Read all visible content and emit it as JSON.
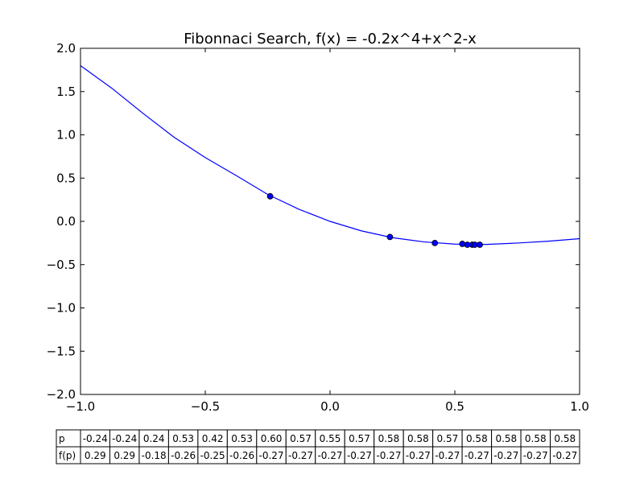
{
  "chart_data": {
    "type": "line",
    "title": "Fibonnaci Search, f(x) = -0.2x^4+x^2-x",
    "xlim": [
      -1.0,
      1.0
    ],
    "ylim": [
      -2.0,
      2.0
    ],
    "xticks": [
      "−1.0",
      "−0.5",
      "0.0",
      "0.5",
      "1.0"
    ],
    "yticks": [
      "−2.0",
      "−1.5",
      "−1.0",
      "−0.5",
      "0.0",
      "0.5",
      "1.0",
      "1.5",
      "2.0"
    ],
    "grid": false,
    "line_color": "#0000ff",
    "marker_color": "#0000ff",
    "curve": {
      "x": [
        -1.0,
        -0.875,
        -0.75,
        -0.625,
        -0.5,
        -0.375,
        -0.25,
        -0.125,
        0.0,
        0.125,
        0.25,
        0.375,
        0.5,
        0.625,
        0.75,
        0.875,
        1.0
      ],
      "y": [
        1.8,
        1.5398,
        1.2492,
        0.9718,
        0.7375,
        0.5276,
        0.3117,
        0.1406,
        0.0,
        -0.1094,
        -0.1883,
        -0.2367,
        -0.2625,
        -0.2661,
        -0.2508,
        -0.2288,
        -0.2
      ]
    },
    "points": {
      "x": [
        -0.24,
        0.24,
        0.42,
        0.53,
        0.55,
        0.57,
        0.58,
        0.6
      ],
      "y": [
        0.29,
        -0.18,
        -0.25,
        -0.26,
        -0.27,
        -0.27,
        -0.27,
        -0.27
      ]
    },
    "table": {
      "row_labels": [
        "p",
        "f(p)"
      ],
      "p": [
        "-0.24",
        "-0.24",
        "0.24",
        "0.53",
        "0.42",
        "0.53",
        "0.60",
        "0.57",
        "0.55",
        "0.57",
        "0.58",
        "0.58",
        "0.57",
        "0.58",
        "0.58",
        "0.58",
        "0.58"
      ],
      "fp": [
        "0.29",
        "0.29",
        "-0.18",
        "-0.26",
        "-0.25",
        "-0.26",
        "-0.27",
        "-0.27",
        "-0.27",
        "-0.27",
        "-0.27",
        "-0.27",
        "-0.27",
        "-0.27",
        "-0.27",
        "-0.27",
        "-0.27"
      ]
    }
  }
}
